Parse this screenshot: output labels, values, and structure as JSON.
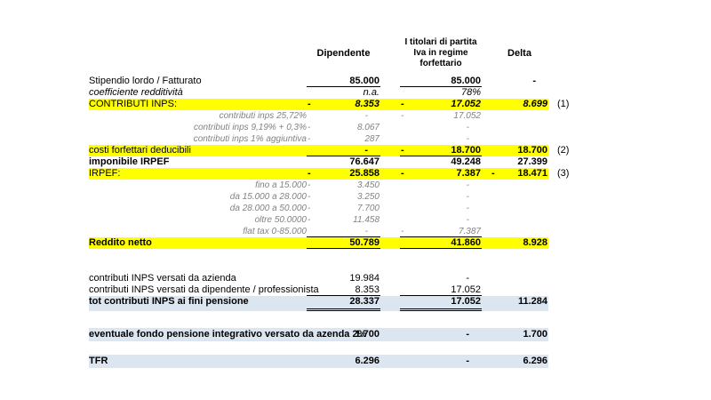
{
  "header": {
    "dipendente": "Dipendente",
    "forfettario": "I titolari di partita\nIva in regime\nforfettario",
    "delta": "Delta"
  },
  "colors": {
    "highlight_yellow": "#FFFF00",
    "highlight_blue": "#DCE6F1"
  },
  "table": {
    "rows": [
      {
        "label": "Stipendio lordo / Fatturato",
        "d_val": "85.000",
        "f_val": "85.000",
        "x_val": "-"
      },
      {
        "label": "coefficiente redditività",
        "d_val": "n.a.",
        "f_val": "78%"
      },
      {
        "label": "CONTRIBUTI INPS:",
        "d_sign": "-",
        "d_val": "8.353",
        "f_sign": "-",
        "f_val": "17.052",
        "x_val": "8.699",
        "note": "(1)"
      },
      {
        "label": "contributi inps 25,72%",
        "d_val": "-",
        "f_sign": "-",
        "f_val": "17.052"
      },
      {
        "label": "contributi inps 9,19% + 0,3%",
        "d_sign": "-",
        "d_val": "8.067",
        "f_val": "-"
      },
      {
        "label": "contributi inps 1% aggiuntiva",
        "d_sign": "-",
        "d_val": "287",
        "f_val": "-"
      },
      {
        "label": "costi forfettari deducibili",
        "d_val": "-",
        "f_sign": "-",
        "f_val": "18.700",
        "x_val": "18.700",
        "note": "(2)"
      },
      {
        "label": "imponibile IRPEF",
        "d_val": "76.647",
        "f_val": "49.248",
        "x_val": "27.399"
      },
      {
        "label": "IRPEF:",
        "d_sign": "-",
        "d_val": "25.858",
        "f_sign": "-",
        "f_val": "7.387",
        "x_sign": "-",
        "x_val": "18.471",
        "note": "(3)"
      },
      {
        "label": "fino a 15.000",
        "d_sign": "-",
        "d_val": "3.450",
        "f_val": "-"
      },
      {
        "label": "da 15.000 a 28.000",
        "d_sign": "-",
        "d_val": "3.250",
        "f_val": "-"
      },
      {
        "label": "da 28.000 a 50.000",
        "d_sign": "-",
        "d_val": "7.700",
        "f_val": "-"
      },
      {
        "label": "oltre 50.0000",
        "d_sign": "-",
        "d_val": "11.458",
        "f_val": "-"
      },
      {
        "label": "flat tax 0-85.000",
        "d_val": "-",
        "f_sign": "-",
        "f_val": "7.387"
      },
      {
        "label": "Reddito netto",
        "d_val": "50.789",
        "f_val": "41.860",
        "x_val": "8.928"
      },
      {
        "label": "contributi INPS versati da azienda",
        "d_val": "19.984",
        "f_val": "-"
      },
      {
        "label": "contributi INPS versati da dipendente / professionista",
        "d_val": "8.353",
        "f_val": "17.052"
      },
      {
        "label": "tot contributi INPS ai fini pensione",
        "d_val": "28.337",
        "f_val": "17.052",
        "x_val": "11.284"
      },
      {
        "label": "eventuale fondo pensione integrativo versato da azenda 2%",
        "d_val": "1.700",
        "f_val": "-",
        "x_val": "1.700"
      },
      {
        "label": "TFR",
        "d_val": "6.296",
        "f_val": "-",
        "x_val": "6.296"
      }
    ]
  }
}
